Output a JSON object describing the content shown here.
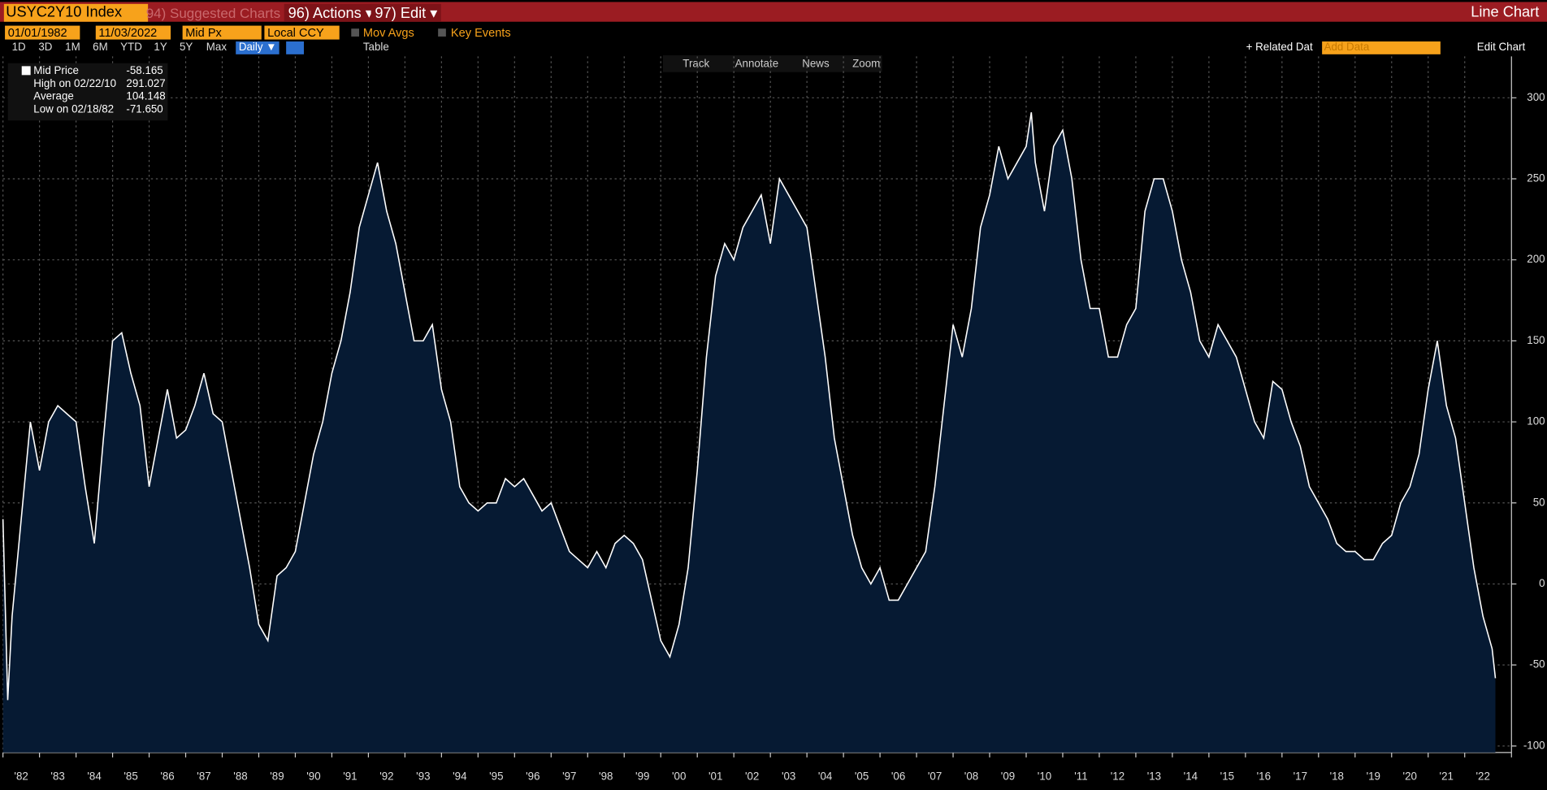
{
  "toolbar": {
    "ticker": "USYC2Y10 Index",
    "suggested": "94) Suggested Charts",
    "actions": "96) Actions ▾",
    "edit": "97) Edit ▾",
    "view": "Line Chart"
  },
  "controls": {
    "start": "01/01/1982",
    "end": "11/03/2022",
    "field": "Mid Px",
    "currency": "Local CCY",
    "mov_avgs": "Mov Avgs",
    "key_events": "Key Events"
  },
  "periods": [
    "1D",
    "3D",
    "1M",
    "6M",
    "YTD",
    "1Y",
    "5Y",
    "Max"
  ],
  "frequency": "Daily ▼",
  "table": "Table",
  "related": "+ Related Dat",
  "add_data": "Add Data",
  "edit_chart": "Edit Chart",
  "chart_tools": [
    "Track",
    "Annotate",
    "News",
    "Zoom"
  ],
  "legend": [
    {
      "label": "Mid Price",
      "value": "-58.165"
    },
    {
      "label": "High on 02/22/10",
      "value": "291.027"
    },
    {
      "label": "Average",
      "value": "104.148"
    },
    {
      "label": "Low on 02/18/82",
      "value": "-71.650"
    }
  ],
  "chart_data": {
    "type": "area",
    "color": "#ffffff",
    "fill": "#061a33",
    "grid": true,
    "x": [
      1982,
      1982.13,
      1982.25,
      1982.5,
      1982.75,
      1983,
      1983.25,
      1983.5,
      1983.75,
      1984,
      1984.25,
      1984.5,
      1984.75,
      1985,
      1985.25,
      1985.5,
      1985.75,
      1986,
      1986.25,
      1986.5,
      1986.75,
      1987,
      1987.25,
      1987.5,
      1987.75,
      1988,
      1988.25,
      1988.5,
      1988.75,
      1989,
      1989.25,
      1989.5,
      1989.75,
      1990,
      1990.25,
      1990.5,
      1990.75,
      1991,
      1991.25,
      1991.5,
      1991.75,
      1992,
      1992.25,
      1992.5,
      1992.75,
      1993,
      1993.25,
      1993.5,
      1993.75,
      1994,
      1994.25,
      1994.5,
      1994.75,
      1995,
      1995.25,
      1995.5,
      1995.75,
      1996,
      1996.25,
      1996.5,
      1996.75,
      1997,
      1997.25,
      1997.5,
      1997.75,
      1998,
      1998.25,
      1998.5,
      1998.75,
      1999,
      1999.25,
      1999.5,
      1999.75,
      2000,
      2000.25,
      2000.5,
      2000.75,
      2001,
      2001.25,
      2001.5,
      2001.75,
      2002,
      2002.25,
      2002.5,
      2002.75,
      2003,
      2003.25,
      2003.5,
      2003.75,
      2004,
      2004.25,
      2004.5,
      2004.75,
      2005,
      2005.25,
      2005.5,
      2005.75,
      2006,
      2006.25,
      2006.5,
      2006.75,
      2007,
      2007.25,
      2007.5,
      2007.75,
      2008,
      2008.25,
      2008.5,
      2008.75,
      2009,
      2009.25,
      2009.5,
      2009.75,
      2010,
      2010.14,
      2010.25,
      2010.5,
      2010.75,
      2011,
      2011.25,
      2011.5,
      2011.75,
      2012,
      2012.25,
      2012.5,
      2012.75,
      2013,
      2013.25,
      2013.5,
      2013.75,
      2014,
      2014.25,
      2014.5,
      2014.75,
      2015,
      2015.25,
      2015.5,
      2015.75,
      2016,
      2016.25,
      2016.5,
      2016.75,
      2017,
      2017.25,
      2017.5,
      2017.75,
      2018,
      2018.25,
      2018.5,
      2018.75,
      2019,
      2019.25,
      2019.5,
      2019.75,
      2020,
      2020.25,
      2020.5,
      2020.75,
      2021,
      2021.25,
      2021.5,
      2021.75,
      2022,
      2022.25,
      2022.5,
      2022.75,
      2022.84
    ],
    "values": [
      40,
      -71.65,
      -20,
      40,
      100,
      70,
      100,
      110,
      105,
      100,
      60,
      25,
      90,
      150,
      155,
      130,
      110,
      60,
      90,
      120,
      90,
      95,
      110,
      130,
      105,
      100,
      70,
      40,
      10,
      -25,
      -35,
      5,
      10,
      20,
      50,
      80,
      100,
      130,
      150,
      180,
      220,
      240,
      260,
      230,
      210,
      180,
      150,
      150,
      160,
      120,
      100,
      60,
      50,
      45,
      50,
      50,
      65,
      60,
      65,
      55,
      45,
      50,
      35,
      20,
      15,
      10,
      20,
      10,
      25,
      30,
      25,
      15,
      -10,
      -35,
      -45,
      -25,
      10,
      70,
      140,
      190,
      210,
      200,
      220,
      230,
      240,
      210,
      250,
      240,
      230,
      220,
      180,
      140,
      90,
      60,
      30,
      10,
      0,
      10,
      -10,
      -10,
      0,
      10,
      20,
      60,
      110,
      160,
      140,
      170,
      220,
      240,
      270,
      250,
      260,
      270,
      291.027,
      260,
      230,
      270,
      280,
      250,
      200,
      170,
      170,
      140,
      140,
      160,
      170,
      230,
      250,
      250,
      230,
      200,
      180,
      150,
      140,
      160,
      150,
      140,
      120,
      100,
      90,
      125,
      120,
      100,
      85,
      60,
      50,
      40,
      25,
      20,
      20,
      15,
      15,
      25,
      30,
      50,
      60,
      80,
      120,
      150,
      110,
      90,
      50,
      10,
      -20,
      -40,
      -58.165
    ],
    "xlim": [
      1982,
      2023.28
    ],
    "xticks": [
      {
        "value": 1982,
        "label": "'82"
      },
      {
        "value": 1983,
        "label": "'83"
      },
      {
        "value": 1984,
        "label": "'84"
      },
      {
        "value": 1985,
        "label": "'85"
      },
      {
        "value": 1986,
        "label": "'86"
      },
      {
        "value": 1987,
        "label": "'87"
      },
      {
        "value": 1988,
        "label": "'88"
      },
      {
        "value": 1989,
        "label": "'89"
      },
      {
        "value": 1990,
        "label": "'90"
      },
      {
        "value": 1991,
        "label": "'91"
      },
      {
        "value": 1992,
        "label": "'92"
      },
      {
        "value": 1993,
        "label": "'93"
      },
      {
        "value": 1994,
        "label": "'94"
      },
      {
        "value": 1995,
        "label": "'95"
      },
      {
        "value": 1996,
        "label": "'96"
      },
      {
        "value": 1997,
        "label": "'97"
      },
      {
        "value": 1998,
        "label": "'98"
      },
      {
        "value": 1999,
        "label": "'99"
      },
      {
        "value": 2000,
        "label": "'00"
      },
      {
        "value": 2001,
        "label": "'01"
      },
      {
        "value": 2002,
        "label": "'02"
      },
      {
        "value": 2003,
        "label": "'03"
      },
      {
        "value": 2004,
        "label": "'04"
      },
      {
        "value": 2005,
        "label": "'05"
      },
      {
        "value": 2006,
        "label": "'06"
      },
      {
        "value": 2007,
        "label": "'07"
      },
      {
        "value": 2008,
        "label": "'08"
      },
      {
        "value": 2009,
        "label": "'09"
      },
      {
        "value": 2010,
        "label": "'10"
      },
      {
        "value": 2011,
        "label": "'11"
      },
      {
        "value": 2012,
        "label": "'12"
      },
      {
        "value": 2013,
        "label": "'13"
      },
      {
        "value": 2014,
        "label": "'14"
      },
      {
        "value": 2015,
        "label": "'15"
      },
      {
        "value": 2016,
        "label": "'16"
      },
      {
        "value": 2017,
        "label": "'17"
      },
      {
        "value": 2018,
        "label": "'18"
      },
      {
        "value": 2019,
        "label": "'19"
      },
      {
        "value": 2020,
        "label": "'20"
      },
      {
        "value": 2021,
        "label": "'21"
      },
      {
        "value": 2022,
        "label": "'22"
      }
    ],
    "ylim": [
      -104,
      325.6
    ],
    "yticks": [
      -100,
      -50,
      0,
      50,
      100,
      150,
      200,
      250,
      300
    ]
  }
}
